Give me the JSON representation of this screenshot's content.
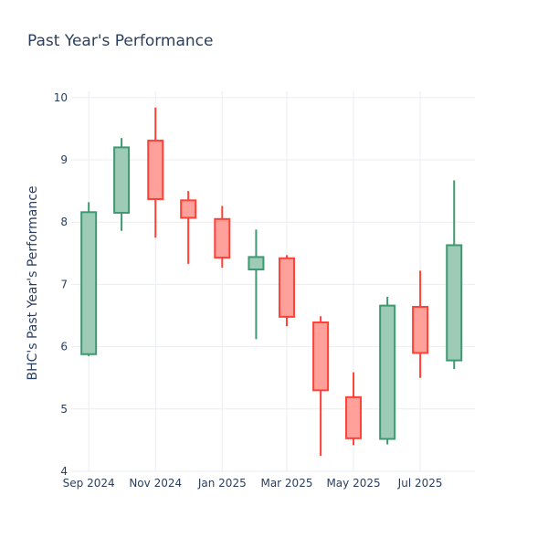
{
  "chart_data": {
    "type": "candlestick",
    "title": "Past Year's Performance",
    "xlabel": "",
    "ylabel": "BHC's Past Year's Performance",
    "ylim": [
      4,
      10.1
    ],
    "yticks": [
      4,
      5,
      6,
      7,
      8,
      9,
      10
    ],
    "xlim": [
      "2024-08-16",
      "2025-08-20"
    ],
    "xticks": [
      {
        "date": "2024-09-01",
        "label": "Sep 2024"
      },
      {
        "date": "2024-11-01",
        "label": "Nov 2024"
      },
      {
        "date": "2025-01-01",
        "label": "Jan 2025"
      },
      {
        "date": "2025-03-01",
        "label": "Mar 2025"
      },
      {
        "date": "2025-05-01",
        "label": "May 2025"
      },
      {
        "date": "2025-07-01",
        "label": "Jul 2025"
      }
    ],
    "increasing_color": "#3d9970",
    "increasing_fill": "#9ecbb6",
    "decreasing_color": "#ff4136",
    "decreasing_fill": "#ffa09b",
    "candles": [
      {
        "date": "2024-09-01",
        "open": 5.88,
        "high": 8.32,
        "low": 5.85,
        "close": 8.16
      },
      {
        "date": "2024-10-01",
        "open": 8.15,
        "high": 9.35,
        "low": 7.86,
        "close": 9.2
      },
      {
        "date": "2024-11-01",
        "open": 9.31,
        "high": 9.84,
        "low": 7.75,
        "close": 8.37
      },
      {
        "date": "2024-12-01",
        "open": 8.35,
        "high": 8.5,
        "low": 7.33,
        "close": 8.07
      },
      {
        "date": "2025-01-01",
        "open": 8.05,
        "high": 8.26,
        "low": 7.27,
        "close": 7.43
      },
      {
        "date": "2025-02-01",
        "open": 7.24,
        "high": 7.88,
        "low": 6.12,
        "close": 7.44
      },
      {
        "date": "2025-03-01",
        "open": 7.42,
        "high": 7.47,
        "low": 6.33,
        "close": 6.48
      },
      {
        "date": "2025-04-01",
        "open": 6.39,
        "high": 6.49,
        "low": 4.25,
        "close": 5.3
      },
      {
        "date": "2025-05-01",
        "open": 5.19,
        "high": 5.59,
        "low": 4.42,
        "close": 4.53
      },
      {
        "date": "2025-06-01",
        "open": 4.52,
        "high": 6.8,
        "low": 4.43,
        "close": 6.66
      },
      {
        "date": "2025-07-01",
        "open": 6.64,
        "high": 7.22,
        "low": 5.5,
        "close": 5.9
      },
      {
        "date": "2025-08-01",
        "open": 5.78,
        "high": 8.67,
        "low": 5.64,
        "close": 7.63
      }
    ]
  }
}
